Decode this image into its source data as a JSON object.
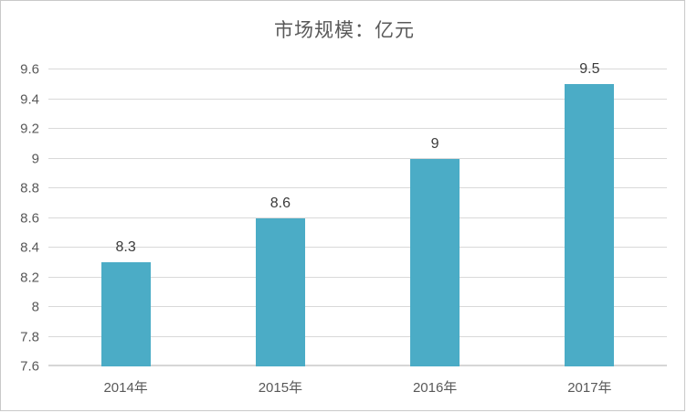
{
  "window": {
    "background": "#ffffff",
    "border_color": "#c9c9c9"
  },
  "chart_data": {
    "type": "bar",
    "title": "市场规模：亿元",
    "categories": [
      "2014年",
      "2015年",
      "2016年",
      "2017年"
    ],
    "values": [
      8.3,
      8.6,
      9,
      9.5
    ],
    "data_labels": [
      "8.3",
      "8.6",
      "9",
      "9.5"
    ],
    "xlabel": "",
    "ylabel": "",
    "ylim": [
      7.6,
      9.6
    ],
    "ytick_step": 0.2,
    "yticks": [
      "7.6",
      "7.8",
      "8",
      "8.2",
      "8.4",
      "8.6",
      "8.8",
      "9",
      "9.2",
      "9.4",
      "9.6"
    ],
    "grid": true,
    "legend_position": "none",
    "bar_color": "#4bacc6",
    "gridline_color": "#d9d9d9",
    "baseline_color": "#d6d6d6",
    "title_color": "#595959",
    "axis_label_color": "#595959",
    "data_label_color": "#3b3b3b"
  }
}
